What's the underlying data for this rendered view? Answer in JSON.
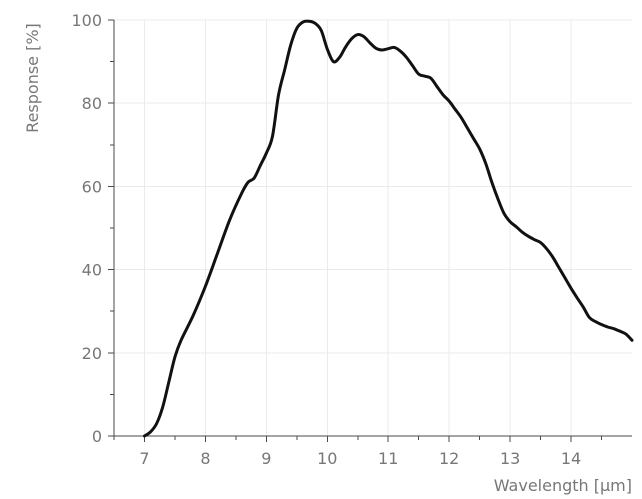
{
  "chart_data": {
    "type": "line",
    "title": "",
    "xlabel": "Wavelength [µm]",
    "ylabel": "Response [%]",
    "xlim": [
      6.5,
      15.0
    ],
    "ylim": [
      0,
      100
    ],
    "x_ticks": [
      7,
      8,
      9,
      10,
      11,
      12,
      13,
      14
    ],
    "x_minor_ticks": [
      6.5,
      7.5,
      8.5,
      9.5,
      10.5,
      11.5,
      12.5,
      13.5,
      14.5
    ],
    "y_ticks": [
      0,
      20,
      40,
      60,
      80,
      100
    ],
    "y_minor_ticks": [
      10,
      30,
      50,
      70,
      90
    ],
    "grid": true,
    "legend": "none",
    "series": [
      {
        "color": "#111111",
        "x": [
          7.0,
          7.1,
          7.2,
          7.3,
          7.4,
          7.5,
          7.6,
          7.8,
          8.0,
          8.2,
          8.4,
          8.6,
          8.7,
          8.8,
          8.9,
          9.0,
          9.1,
          9.2,
          9.3,
          9.4,
          9.5,
          9.6,
          9.7,
          9.8,
          9.9,
          10.0,
          10.1,
          10.2,
          10.3,
          10.4,
          10.5,
          10.6,
          10.7,
          10.8,
          10.9,
          11.0,
          11.1,
          11.2,
          11.3,
          11.4,
          11.5,
          11.6,
          11.7,
          11.8,
          11.9,
          12.0,
          12.1,
          12.2,
          12.3,
          12.4,
          12.5,
          12.6,
          12.7,
          12.8,
          12.9,
          13.0,
          13.1,
          13.2,
          13.3,
          13.4,
          13.5,
          13.6,
          13.7,
          13.8,
          13.9,
          14.0,
          14.1,
          14.2,
          14.3,
          14.4,
          14.5,
          14.6,
          14.7,
          14.8,
          14.9,
          15.0
        ],
        "y": [
          0,
          1,
          3,
          7,
          13,
          19,
          23,
          29,
          36,
          44,
          52,
          58.5,
          61,
          62,
          65,
          68,
          72,
          82,
          88,
          94,
          98,
          99.5,
          99.7,
          99.2,
          97.5,
          93,
          90,
          91,
          93.5,
          95.5,
          96.5,
          96,
          94.5,
          93.2,
          92.8,
          93.1,
          93.4,
          92.5,
          91,
          89,
          87,
          86.5,
          86,
          84,
          82,
          80.5,
          78.5,
          76.5,
          74,
          71.5,
          69,
          65.5,
          61,
          57,
          53.5,
          51.5,
          50.3,
          49,
          48,
          47.2,
          46.5,
          45,
          43,
          40.5,
          38,
          35.5,
          33.2,
          31,
          28.5,
          27.5,
          26.8,
          26.2,
          25.8,
          25.2,
          24.5,
          23
        ]
      }
    ]
  }
}
